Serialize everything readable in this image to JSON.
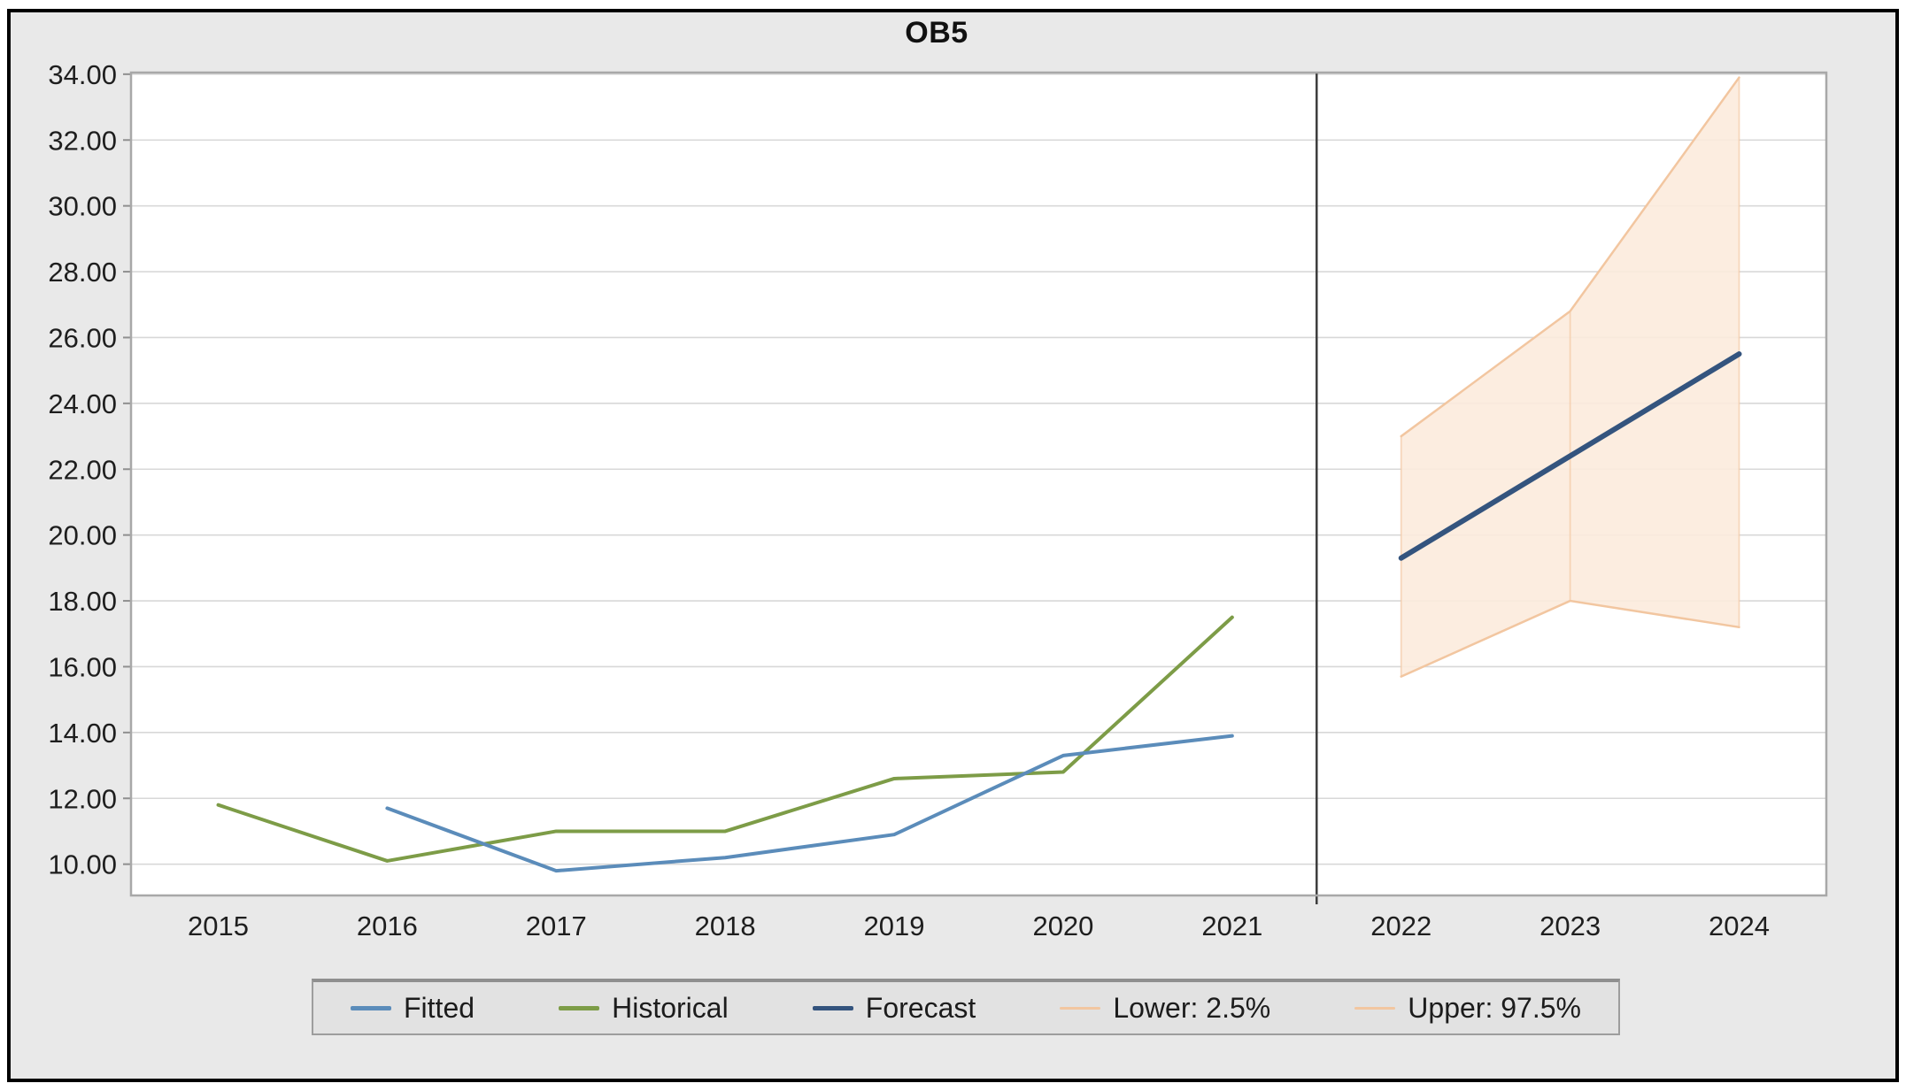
{
  "frame": {
    "background_color": "#e9e9e9",
    "border_color": "#000000",
    "plot_background": "#ffffff",
    "gridline_color": "#d8d8d8",
    "divider_color": "#3c3c3c"
  },
  "chart_data": {
    "type": "line",
    "title": "OB5",
    "xlabel": "",
    "ylabel": "",
    "x": [
      2015,
      2016,
      2017,
      2018,
      2019,
      2020,
      2021,
      2022,
      2023,
      2024
    ],
    "x_tick_labels": [
      "2015",
      "2016",
      "2017",
      "2018",
      "2019",
      "2020",
      "2021",
      "2022",
      "2023",
      "2024"
    ],
    "y_axis": {
      "min": 9.05,
      "max": 34.05,
      "tick_values": [
        10,
        12,
        14,
        16,
        18,
        20,
        22,
        24,
        26,
        28,
        30,
        32,
        34
      ],
      "tick_labels": [
        "10.00",
        "12.00",
        "14.00",
        "16.00",
        "18.00",
        "20.00",
        "22.00",
        "24.00",
        "26.00",
        "28.00",
        "30.00",
        "32.00",
        "34.00"
      ],
      "grid": true
    },
    "divider_x": 2021.5,
    "series": [
      {
        "name": "Fitted",
        "color": "#5b8cba",
        "line_width": 4,
        "values": [
          null,
          11.7,
          9.8,
          10.2,
          10.9,
          13.3,
          13.9,
          null,
          null,
          null
        ]
      },
      {
        "name": "Historical",
        "color": "#7d9c47",
        "line_width": 4,
        "values": [
          11.8,
          10.1,
          11.0,
          11.0,
          12.6,
          12.8,
          17.5,
          null,
          null,
          null
        ]
      },
      {
        "name": "Forecast",
        "color": "#34547e",
        "line_width": 6,
        "values": [
          null,
          null,
          null,
          null,
          null,
          null,
          null,
          19.3,
          22.4,
          25.5
        ]
      },
      {
        "name": "Lower: 2.5%",
        "color": "#f2c6a0",
        "line_width": 2.5,
        "values": [
          null,
          null,
          null,
          null,
          null,
          null,
          null,
          15.7,
          18.0,
          17.2
        ]
      },
      {
        "name": "Upper: 97.5%",
        "color": "#f2c6a0",
        "line_width": 2.5,
        "values": [
          null,
          null,
          null,
          null,
          null,
          null,
          null,
          23.0,
          26.8,
          33.9
        ]
      }
    ],
    "band": {
      "x": [
        2022,
        2023,
        2024
      ],
      "lower": [
        15.7,
        18.0,
        17.2
      ],
      "upper": [
        23.0,
        26.8,
        33.9
      ],
      "fill_color": "#fcebdd",
      "edge_color": "#f2c6a0"
    },
    "legend": {
      "position": "bottom",
      "items": [
        {
          "label": "Fitted",
          "color": "#5b8cba",
          "thick": true
        },
        {
          "label": "Historical",
          "color": "#7d9c47",
          "thick": true
        },
        {
          "label": "Forecast",
          "color": "#34547e",
          "thick": true
        },
        {
          "label": "Lower: 2.5%",
          "color": "#f2c6a0",
          "thick": false
        },
        {
          "label": "Upper: 97.5%",
          "color": "#f2c6a0",
          "thick": false
        }
      ]
    }
  }
}
